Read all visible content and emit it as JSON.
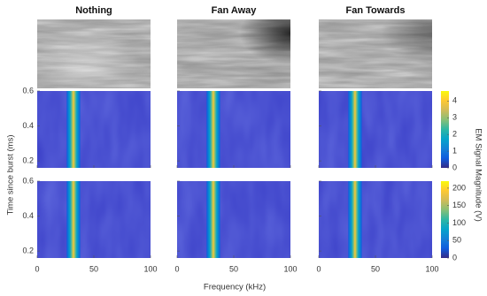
{
  "chart_data": {
    "type": "heatmap",
    "columns": [
      "Nothing",
      "Fan Away",
      "Fan Towards"
    ],
    "xlabel": "Frequency (kHz)",
    "ylabel": "Time since burst (ms)",
    "colorbar_label": "EM Signal Magnitude (V)",
    "colormap": "parula",
    "xlim": [
      0,
      100
    ],
    "xticks": [
      0,
      50,
      100
    ],
    "ylim": [
      0.16,
      0.6
    ],
    "yticks": [
      0.2,
      0.4,
      0.6
    ],
    "colorbars": [
      {
        "lim": [
          0,
          4.6
        ],
        "ticks": [
          0,
          1,
          2,
          3,
          4
        ]
      },
      {
        "lim": [
          0,
          220
        ],
        "ticks": [
          0,
          50,
          100,
          150,
          200
        ]
      }
    ]
  }
}
